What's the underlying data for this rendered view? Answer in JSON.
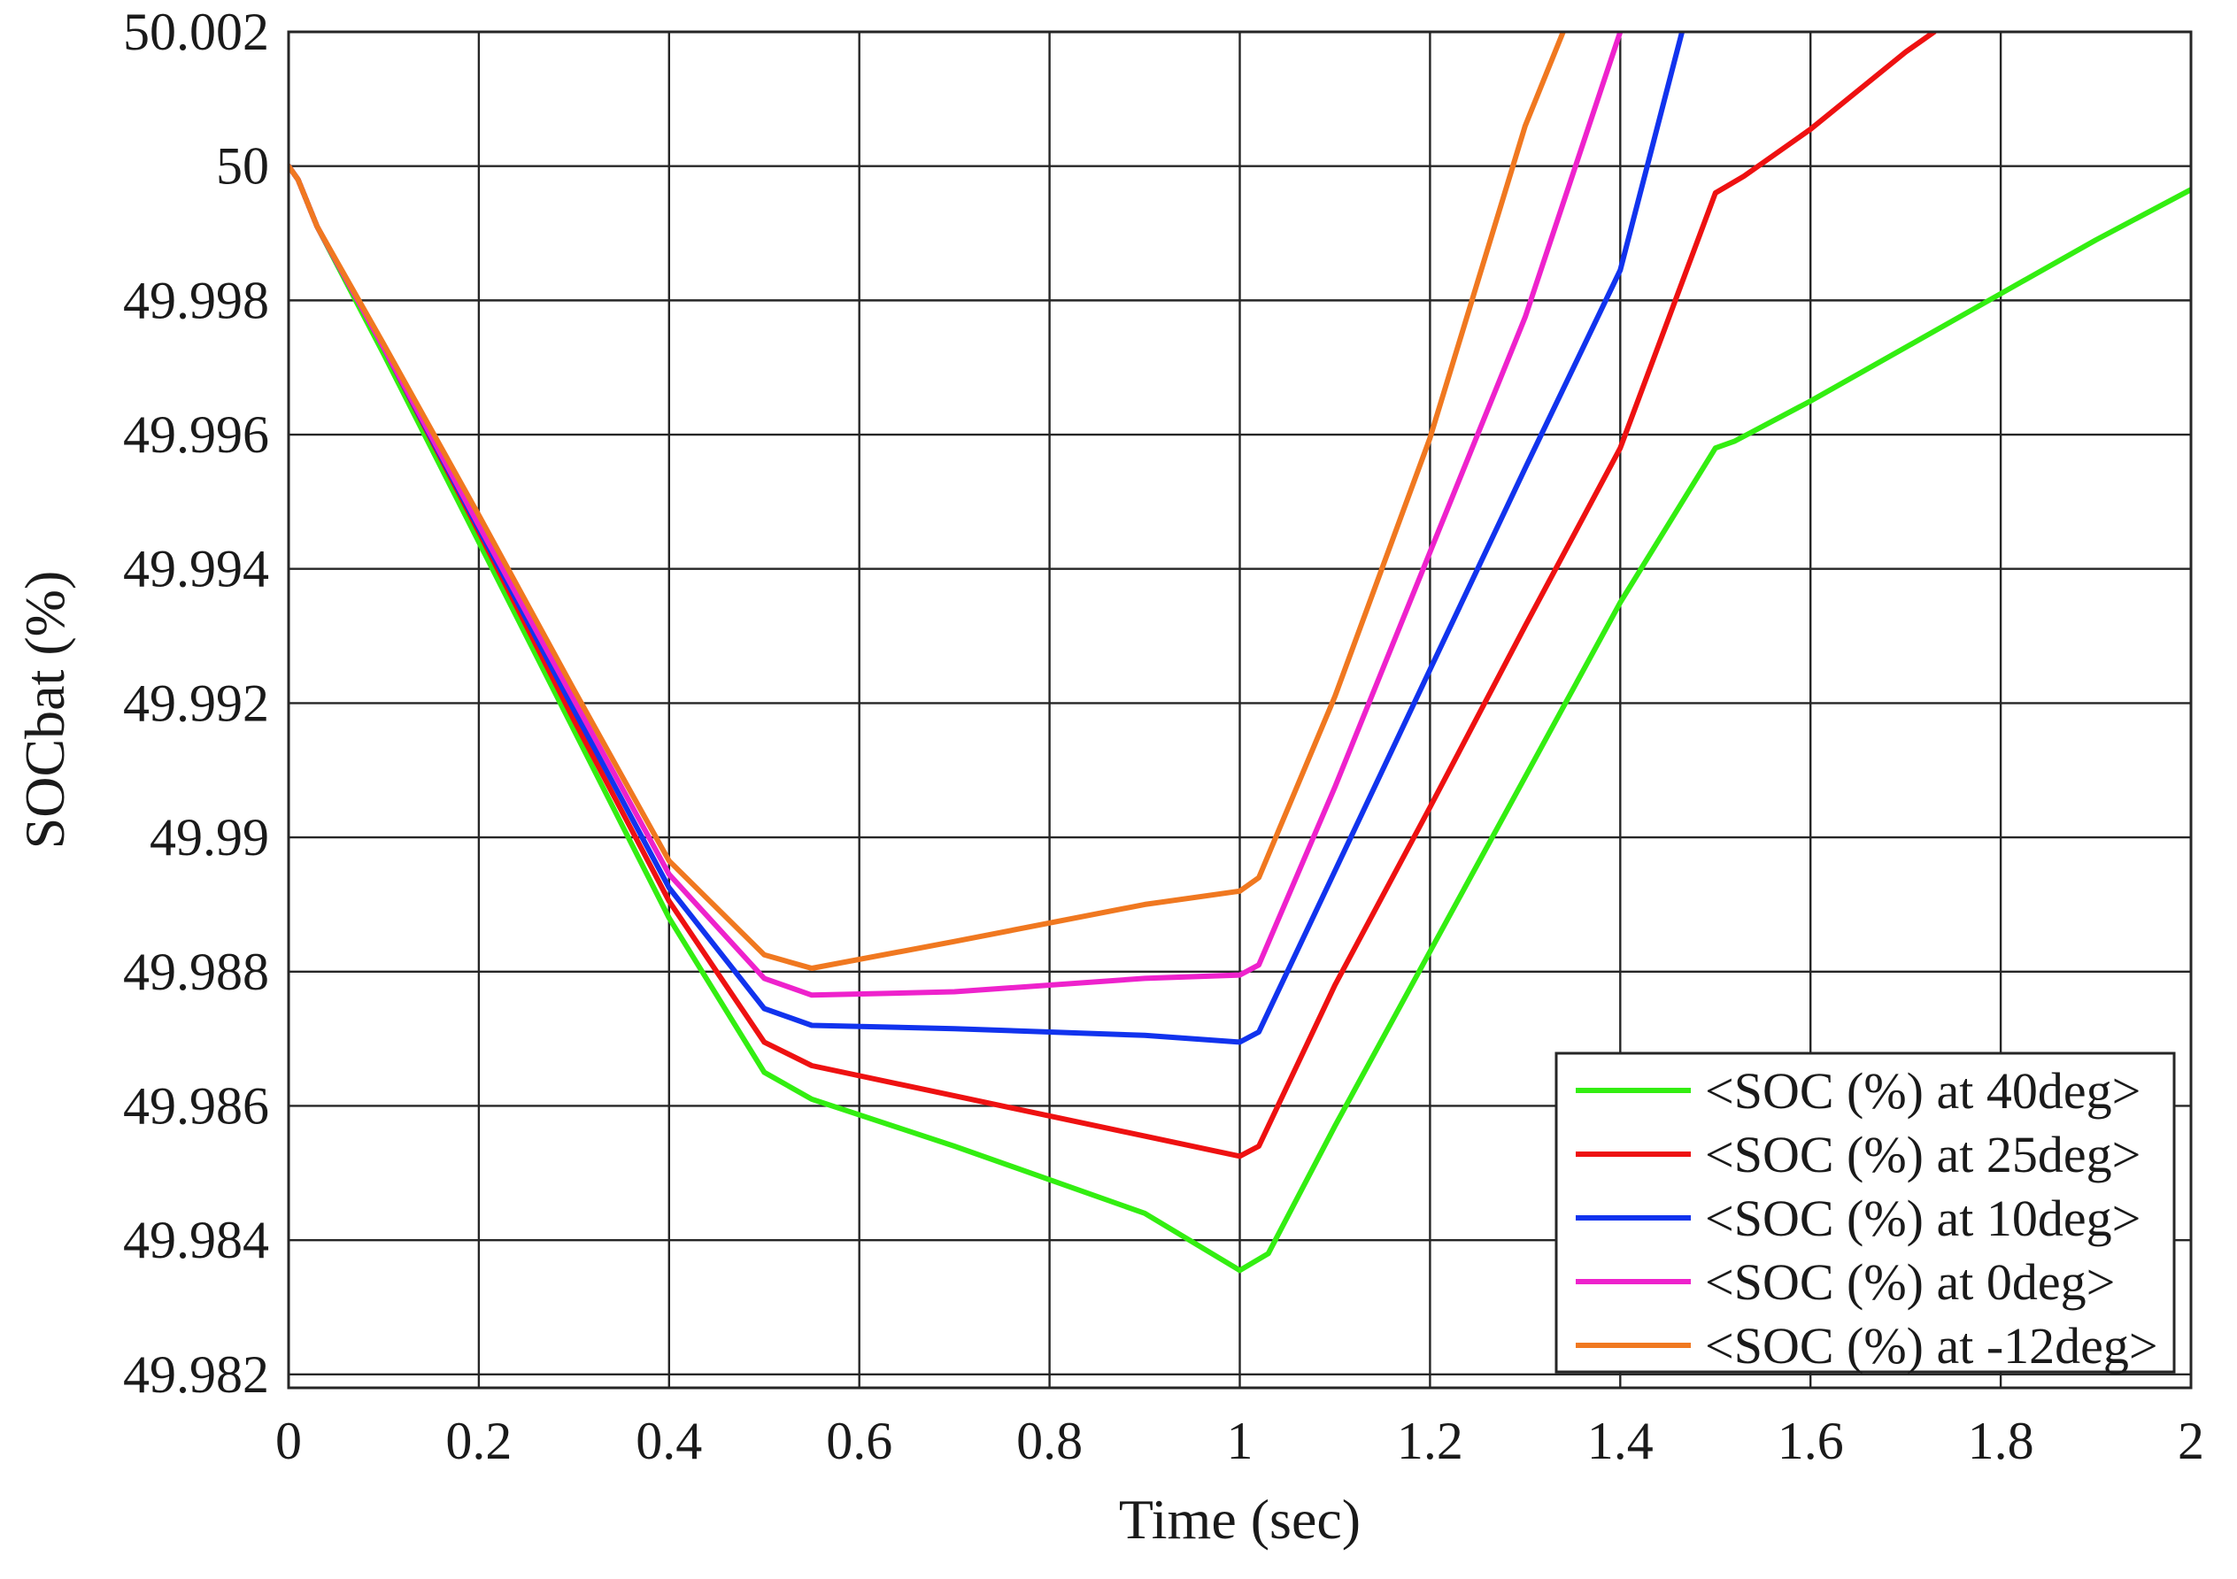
{
  "chart_data": {
    "type": "line",
    "title": "",
    "xlabel": "Time (sec)",
    "ylabel": "SOCbat (%)",
    "xlim": [
      0,
      2
    ],
    "ylim": [
      49.9818,
      50.002
    ],
    "grid": true,
    "legend_position": "bottom-right",
    "x_ticks": [
      {
        "value": 0,
        "label": "0"
      },
      {
        "value": 0.2,
        "label": "0.2"
      },
      {
        "value": 0.4,
        "label": "0.4"
      },
      {
        "value": 0.6,
        "label": "0.6"
      },
      {
        "value": 0.8,
        "label": "0.8"
      },
      {
        "value": 1,
        "label": "1"
      },
      {
        "value": 1.2,
        "label": "1.2"
      },
      {
        "value": 1.4,
        "label": "1.4"
      },
      {
        "value": 1.6,
        "label": "1.6"
      },
      {
        "value": 1.8,
        "label": "1.8"
      },
      {
        "value": 2,
        "label": "2"
      }
    ],
    "y_ticks": [
      {
        "value": 49.982,
        "label": "49.982"
      },
      {
        "value": 49.984,
        "label": "49.984"
      },
      {
        "value": 49.986,
        "label": "49.986"
      },
      {
        "value": 49.988,
        "label": "49.988"
      },
      {
        "value": 49.99,
        "label": "49.99"
      },
      {
        "value": 49.992,
        "label": "49.992"
      },
      {
        "value": 49.994,
        "label": "49.994"
      },
      {
        "value": 49.996,
        "label": "49.996"
      },
      {
        "value": 49.998,
        "label": "49.998"
      },
      {
        "value": 50,
        "label": "50"
      },
      {
        "value": 50.002,
        "label": "50.002"
      }
    ],
    "series": [
      {
        "name": "<SOC (%) at 40deg>",
        "color": "#33ee11",
        "x": [
          0,
          0.01,
          0.03,
          0.1,
          0.2,
          0.3,
          0.4,
          0.5,
          0.55,
          0.7,
          0.9,
          1.0,
          1.03,
          1.1,
          1.2,
          1.3,
          1.4,
          1.5,
          1.52,
          1.6,
          1.7,
          1.8,
          1.9,
          2.0
        ],
        "y": [
          50.0,
          49.9998,
          49.9991,
          49.9972,
          49.9944,
          49.9916,
          49.9888,
          49.9865,
          49.9861,
          49.9854,
          49.9844,
          49.98355,
          49.9838,
          49.9857,
          49.9883,
          49.9909,
          49.9935,
          49.9958,
          49.9959,
          49.9965,
          49.9973,
          49.9981,
          49.9989,
          49.99965
        ]
      },
      {
        "name": "<SOC (%) at 25deg>",
        "color": "#ee1111",
        "x": [
          0,
          0.01,
          0.03,
          0.1,
          0.2,
          0.3,
          0.4,
          0.5,
          0.55,
          0.7,
          0.9,
          1.0,
          1.02,
          1.1,
          1.2,
          1.3,
          1.4,
          1.5,
          1.53,
          1.6,
          1.7,
          1.73
        ],
        "y": [
          50.0,
          49.9998,
          49.9991,
          49.9973,
          49.99455,
          49.99175,
          49.98905,
          49.98695,
          49.9866,
          49.98615,
          49.98555,
          49.98525,
          49.9854,
          49.9878,
          49.99045,
          49.99315,
          49.9958,
          49.9996,
          49.99985,
          50.00055,
          50.0017,
          50.002
        ]
      },
      {
        "name": "<SOC (%) at 10deg>",
        "color": "#1133ee",
        "x": [
          0,
          0.01,
          0.03,
          0.1,
          0.2,
          0.3,
          0.4,
          0.5,
          0.55,
          0.7,
          0.9,
          1.0,
          1.02,
          1.1,
          1.2,
          1.3,
          1.4,
          1.465
        ],
        "y": [
          50.0,
          49.9998,
          49.9991,
          49.9973,
          49.9946,
          49.9919,
          49.98925,
          49.98745,
          49.9872,
          49.98715,
          49.98705,
          49.98695,
          49.9871,
          49.9895,
          49.9925,
          49.9955,
          49.99845,
          50.002
        ]
      },
      {
        "name": "<SOC (%) at 0deg>",
        "color": "#ee22cc",
        "x": [
          0,
          0.01,
          0.03,
          0.1,
          0.2,
          0.3,
          0.4,
          0.5,
          0.55,
          0.7,
          0.9,
          1.0,
          1.02,
          1.1,
          1.2,
          1.3,
          1.4
        ],
        "y": [
          50.0,
          49.9998,
          49.9991,
          49.9973,
          49.99465,
          49.99205,
          49.98945,
          49.9879,
          49.98765,
          49.9877,
          49.9879,
          49.98795,
          49.9881,
          49.99075,
          49.99425,
          49.99775,
          50.002
        ]
      },
      {
        "name": "<SOC (%) at -12deg>",
        "color": "#f07820",
        "x": [
          0,
          0.01,
          0.03,
          0.1,
          0.2,
          0.3,
          0.4,
          0.5,
          0.55,
          0.7,
          0.9,
          1.0,
          1.02,
          1.1,
          1.2,
          1.3,
          1.34
        ],
        "y": [
          50.0,
          49.9998,
          49.9991,
          49.99735,
          49.9948,
          49.9922,
          49.98965,
          49.98825,
          49.98805,
          49.98845,
          49.989,
          49.9892,
          49.9894,
          49.9921,
          49.99595,
          50.0006,
          50.002
        ]
      }
    ]
  }
}
